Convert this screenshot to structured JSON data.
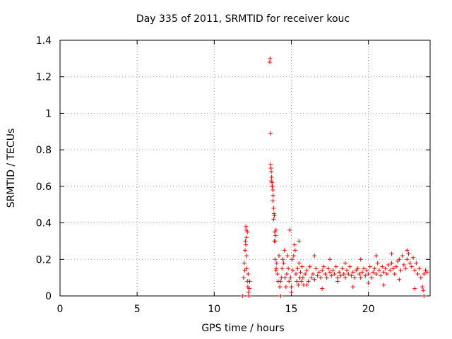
{
  "chart_data": {
    "type": "scatter",
    "title": "Day 335 of 2011, SRMTID for receiver kouc",
    "xlabel": "GPS time / hours",
    "ylabel": "SRMTID / TECUs",
    "xlim": [
      0,
      24
    ],
    "ylim": [
      0,
      1.4
    ],
    "x_ticks": [
      0,
      5,
      10,
      15,
      20
    ],
    "x_tick_labels": [
      "0",
      "5",
      "10",
      "15",
      "20"
    ],
    "y_ticks": [
      0,
      0.2,
      0.4,
      0.6,
      0.8,
      1.0,
      1.2,
      1.4
    ],
    "y_tick_labels": [
      "0",
      "0.2",
      "0.4",
      "0.6",
      "0.8",
      "1",
      "1.2",
      "1.4"
    ],
    "grid": true,
    "marker": "+",
    "series": [
      {
        "name": "SRMTID",
        "color": "#ff0000",
        "x": [
          11.85,
          11.9,
          11.95,
          12.0,
          12.02,
          12.05,
          12.08,
          12.1,
          12.12,
          12.15,
          12.18,
          12.2,
          12.22,
          12.25,
          12.28,
          12.3,
          12.1,
          12.05,
          11.98,
          12.15,
          13.6,
          13.62,
          13.65,
          13.66,
          13.68,
          13.7,
          13.72,
          13.75,
          13.78,
          13.8,
          13.82,
          13.85,
          13.88,
          13.9,
          13.92,
          13.95,
          13.98,
          14.0,
          14.02,
          13.7,
          13.75,
          13.8,
          13.85,
          13.9,
          13.95,
          14.0,
          14.05,
          14.1,
          14.15,
          14.2,
          14.25,
          14.3,
          14.35,
          14.4,
          14.45,
          14.5,
          14.55,
          14.6,
          14.65,
          14.7,
          14.75,
          14.8,
          14.85,
          14.9,
          14.95,
          15.0,
          15.05,
          15.1,
          15.15,
          15.2,
          15.25,
          15.3,
          15.35,
          15.4,
          15.45,
          15.5,
          15.55,
          15.6,
          15.65,
          15.7,
          15.75,
          15.8,
          15.9,
          16.0,
          16.1,
          16.2,
          16.3,
          16.4,
          16.5,
          16.6,
          16.7,
          16.8,
          16.9,
          17.0,
          17.1,
          17.2,
          17.3,
          17.4,
          17.5,
          17.6,
          17.7,
          17.8,
          17.9,
          18.0,
          18.1,
          18.2,
          18.3,
          18.4,
          18.5,
          18.6,
          18.7,
          18.8,
          18.9,
          19.0,
          19.1,
          19.2,
          19.3,
          19.4,
          19.5,
          19.6,
          19.7,
          19.8,
          19.9,
          20.0,
          20.1,
          20.2,
          20.3,
          20.4,
          20.5,
          20.6,
          20.7,
          20.8,
          20.9,
          21.0,
          21.1,
          21.2,
          21.3,
          21.4,
          21.5,
          21.6,
          21.7,
          21.8,
          21.9,
          22.0,
          22.1,
          22.2,
          22.3,
          22.4,
          22.5,
          22.6,
          22.7,
          22.8,
          22.9,
          23.0,
          23.1,
          23.2,
          23.3,
          23.4,
          23.5,
          23.6,
          23.7,
          23.8,
          15.0,
          16.0,
          17.0,
          18.0,
          19.0,
          20.0,
          21.0,
          22.0,
          23.0,
          15.5,
          16.5,
          17.5,
          18.5,
          19.5,
          20.5,
          21.5,
          22.5,
          23.55,
          14.3,
          23.6
        ],
        "y": [
          0.0,
          0.1,
          0.18,
          0.25,
          0.3,
          0.38,
          0.36,
          0.32,
          0.15,
          0.08,
          0.05,
          0.12,
          0.02,
          0.0,
          0.04,
          0.08,
          0.22,
          0.28,
          0.14,
          0.35,
          1.28,
          1.3,
          0.89,
          0.72,
          0.7,
          0.68,
          0.65,
          0.62,
          0.6,
          0.58,
          0.55,
          0.48,
          0.45,
          0.44,
          0.35,
          0.3,
          0.33,
          0.36,
          0.15,
          0.63,
          0.6,
          0.52,
          0.42,
          0.3,
          0.2,
          0.14,
          0.18,
          0.12,
          0.08,
          0.22,
          0.05,
          0.0,
          0.1,
          0.15,
          0.2,
          0.18,
          0.25,
          0.1,
          0.05,
          0.12,
          0.22,
          0.15,
          0.08,
          0.36,
          0.1,
          0.05,
          0.2,
          0.14,
          0.22,
          0.28,
          0.25,
          0.12,
          0.08,
          0.15,
          0.06,
          0.18,
          0.1,
          0.13,
          0.08,
          0.16,
          0.1,
          0.06,
          0.12,
          0.14,
          0.08,
          0.16,
          0.1,
          0.12,
          0.09,
          0.15,
          0.11,
          0.13,
          0.1,
          0.14,
          0.16,
          0.12,
          0.1,
          0.15,
          0.13,
          0.11,
          0.14,
          0.12,
          0.16,
          0.1,
          0.13,
          0.11,
          0.15,
          0.12,
          0.1,
          0.14,
          0.12,
          0.16,
          0.11,
          0.13,
          0.1,
          0.14,
          0.15,
          0.12,
          0.1,
          0.13,
          0.15,
          0.11,
          0.14,
          0.12,
          0.16,
          0.1,
          0.13,
          0.15,
          0.12,
          0.18,
          0.14,
          0.11,
          0.16,
          0.13,
          0.15,
          0.12,
          0.17,
          0.14,
          0.18,
          0.15,
          0.12,
          0.16,
          0.19,
          0.2,
          0.14,
          0.22,
          0.17,
          0.15,
          0.2,
          0.23,
          0.18,
          0.16,
          0.21,
          0.14,
          0.18,
          0.12,
          0.15,
          0.1,
          0.05,
          0.0,
          0.14,
          0.13,
          0.02,
          0.06,
          0.04,
          0.08,
          0.05,
          0.07,
          0.06,
          0.09,
          0.04,
          0.3,
          0.22,
          0.2,
          0.18,
          0.2,
          0.22,
          0.23,
          0.25,
          0.03,
          0.08,
          0.12
        ]
      }
    ]
  }
}
